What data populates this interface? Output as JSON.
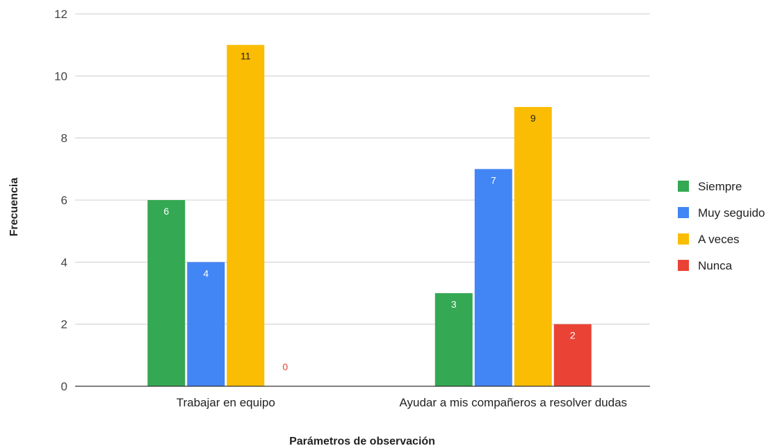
{
  "chart_data": {
    "type": "bar",
    "categories": [
      "Trabajar en equipo",
      "Ayudar a mis compañeros a resolver dudas"
    ],
    "series": [
      {
        "name": "Siempre",
        "values": [
          6,
          3
        ],
        "color": "#34a853",
        "label_color": "#ffffff"
      },
      {
        "name": "Muy seguido",
        "values": [
          4,
          7
        ],
        "color": "#4285f4",
        "label_color": "#ffffff"
      },
      {
        "name": "A veces",
        "values": [
          11,
          9
        ],
        "color": "#fbbc04",
        "label_color": "#222222"
      },
      {
        "name": "Nunca",
        "values": [
          0,
          2
        ],
        "color": "#ea4335",
        "label_color": "#ffffff",
        "zero_label_color": "#ea4335"
      }
    ],
    "title": "",
    "xlabel": "Parámetros de observación",
    "ylabel": "Frecuencia",
    "ylim": [
      0,
      12
    ],
    "yticks": [
      0,
      2,
      4,
      6,
      8,
      10,
      12
    ],
    "grid": true,
    "legend_position": "right"
  }
}
